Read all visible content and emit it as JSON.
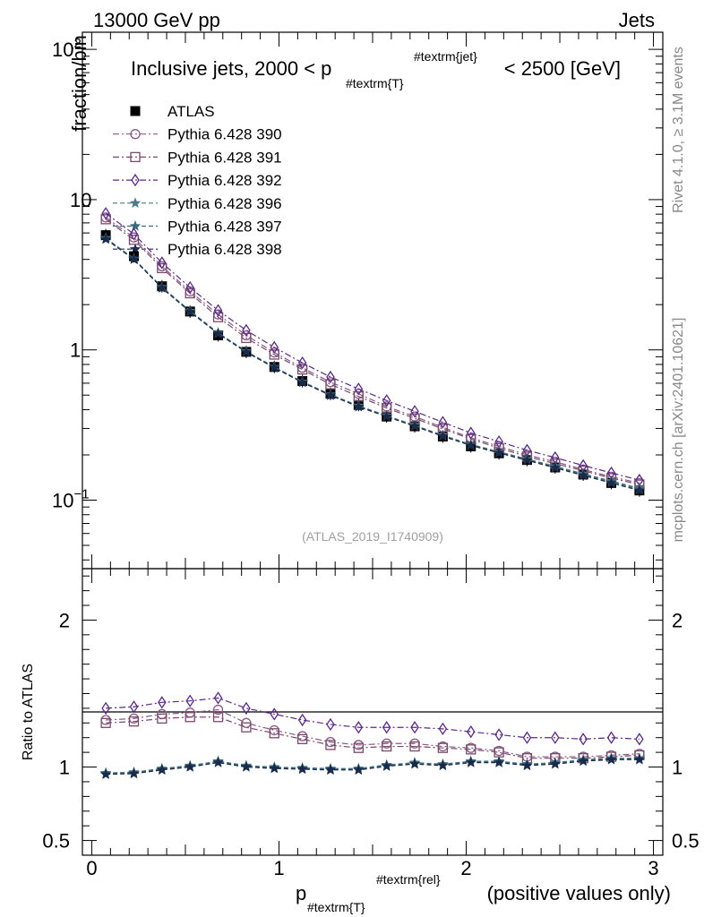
{
  "header": {
    "left": "13000 GeV pp",
    "right": "Jets"
  },
  "side_labels": {
    "rivet": "Rivet 4.1.0, ≥ 3.1M events",
    "mcplots": "mcplots.cern.ch [arXiv:2401.10621]"
  },
  "watermark": "(ATLAS_2019_I1740909)",
  "colors": {
    "atlas": "#000000",
    "s390": "#8a5a86",
    "s391": "#7a4a6a",
    "s392": "#5a2a8a",
    "s396": "#4a7a8a",
    "s397": "#3a6a7a",
    "s398": "#1a2a4a"
  },
  "chart_data": [
    {
      "type": "scatter",
      "title": "Inclusive jets, 2000 < p_#textrm{T}^#textrm{jet} < 2500 [GeV]",
      "title_parts": {
        "main": "Inclusive jets, 2000 < p",
        "sub": "#textrm{T}",
        "sup": "#textrm{jet}",
        "tail": "< 2500 [GeV]"
      },
      "ylabel": "fraction/bin",
      "yscale": "log",
      "ylim": [
        0.035,
        130
      ],
      "xlim": [
        -0.05,
        3.05
      ],
      "yticks": [
        {
          "value": 0.1,
          "base": "10",
          "exp": "−1"
        },
        {
          "value": 1,
          "base": "1",
          "exp": ""
        },
        {
          "value": 10,
          "base": "10",
          "exp": ""
        },
        {
          "value": 100,
          "base": "10",
          "exp": "2"
        }
      ],
      "x": [
        0.075,
        0.225,
        0.375,
        0.525,
        0.675,
        0.825,
        0.975,
        1.125,
        1.275,
        1.425,
        1.575,
        1.725,
        1.875,
        2.025,
        2.175,
        2.325,
        2.475,
        2.625,
        2.775,
        2.925
      ],
      "series": [
        {
          "name": "ATLAS",
          "key": "atlas",
          "marker": "square",
          "values": [
            5.8,
            4.2,
            2.65,
            1.8,
            1.25,
            0.97,
            0.77,
            0.62,
            0.51,
            0.43,
            0.36,
            0.31,
            0.265,
            0.228,
            0.205,
            0.185,
            0.165,
            0.148,
            0.13,
            0.116
          ]
        },
        {
          "name": "Pythia 6.428 390",
          "key": "s390",
          "marker": "circle",
          "values": [
            7.6,
            5.6,
            3.6,
            2.45,
            1.72,
            1.25,
            0.96,
            0.76,
            0.61,
            0.51,
            0.42,
            0.36,
            0.305,
            0.26,
            0.228,
            0.2,
            0.18,
            0.16,
            0.143,
            0.13
          ]
        },
        {
          "name": "Pythia 6.428 391",
          "key": "s391",
          "marker": "square-open",
          "values": [
            7.4,
            5.4,
            3.5,
            2.38,
            1.65,
            1.2,
            0.93,
            0.74,
            0.59,
            0.49,
            0.41,
            0.35,
            0.298,
            0.255,
            0.222,
            0.195,
            0.175,
            0.157,
            0.14,
            0.127
          ]
        },
        {
          "name": "Pythia 6.428 392",
          "key": "s392",
          "marker": "diamond-open",
          "values": [
            8.1,
            5.9,
            3.8,
            2.6,
            1.83,
            1.35,
            1.04,
            0.82,
            0.66,
            0.55,
            0.46,
            0.39,
            0.33,
            0.28,
            0.245,
            0.215,
            0.192,
            0.17,
            0.152,
            0.136
          ]
        },
        {
          "name": "Pythia 6.428 396",
          "key": "s396",
          "marker": "star",
          "values": [
            5.55,
            4.05,
            2.62,
            1.82,
            1.3,
            0.98,
            0.77,
            0.615,
            0.505,
            0.425,
            0.365,
            0.315,
            0.27,
            0.235,
            0.21,
            0.188,
            0.168,
            0.15,
            0.134,
            0.12
          ]
        },
        {
          "name": "Pythia 6.428 397",
          "key": "s397",
          "marker": "star",
          "values": [
            5.5,
            4.02,
            2.6,
            1.8,
            1.29,
            0.97,
            0.765,
            0.61,
            0.5,
            0.42,
            0.362,
            0.313,
            0.268,
            0.233,
            0.208,
            0.186,
            0.166,
            0.148,
            0.132,
            0.118
          ]
        },
        {
          "name": "Pythia 6.428 398",
          "key": "s398",
          "marker": "star",
          "values": [
            5.45,
            4.0,
            2.58,
            1.79,
            1.28,
            0.965,
            0.76,
            0.607,
            0.498,
            0.418,
            0.36,
            0.31,
            0.266,
            0.231,
            0.206,
            0.184,
            0.164,
            0.146,
            0.13,
            0.116
          ]
        }
      ]
    },
    {
      "type": "scatter",
      "ylabel": "Ratio to ATLAS",
      "xlabel": "p_#textrm{T}^#textrm{rel} (positive values only)",
      "xlabel_parts": {
        "main": "p",
        "sub": "#textrm{T}",
        "sup": "#textrm{rel}",
        "tail": "(positive values only)"
      },
      "ylim": [
        0.4,
        2.35
      ],
      "xlim": [
        -0.05,
        3.05
      ],
      "yticks": [
        0.5,
        1,
        2
      ],
      "ytick_labels": [
        "0.5",
        "1",
        "2"
      ],
      "xticks": [
        0,
        1,
        2,
        3
      ],
      "xtick_labels": [
        "0",
        "1",
        "2",
        "3"
      ],
      "x": [
        0.075,
        0.225,
        0.375,
        0.525,
        0.675,
        0.825,
        0.975,
        1.125,
        1.275,
        1.425,
        1.575,
        1.725,
        1.875,
        2.025,
        2.175,
        2.325,
        2.475,
        2.625,
        2.775,
        2.925
      ],
      "series": [
        {
          "name": "Pythia 6.428 390",
          "key": "s390",
          "marker": "circle",
          "values": [
            1.32,
            1.33,
            1.36,
            1.37,
            1.39,
            1.3,
            1.25,
            1.21,
            1.17,
            1.15,
            1.16,
            1.16,
            1.14,
            1.13,
            1.11,
            1.07,
            1.07,
            1.07,
            1.08,
            1.09
          ]
        },
        {
          "name": "Pythia 6.428 391",
          "key": "s391",
          "marker": "square-open",
          "values": [
            1.3,
            1.31,
            1.33,
            1.34,
            1.34,
            1.27,
            1.23,
            1.19,
            1.15,
            1.13,
            1.14,
            1.14,
            1.13,
            1.12,
            1.1,
            1.06,
            1.06,
            1.06,
            1.07,
            1.08
          ]
        },
        {
          "name": "Pythia 6.428 392",
          "key": "s392",
          "marker": "diamond-open",
          "values": [
            1.4,
            1.41,
            1.44,
            1.45,
            1.47,
            1.4,
            1.36,
            1.32,
            1.29,
            1.27,
            1.27,
            1.27,
            1.26,
            1.24,
            1.22,
            1.2,
            1.2,
            1.19,
            1.2,
            1.19
          ]
        },
        {
          "name": "Pythia 6.428 396",
          "key": "s396",
          "marker": "star",
          "values": [
            0.96,
            0.965,
            0.99,
            1.01,
            1.04,
            1.01,
            1.0,
            0.995,
            0.99,
            0.99,
            1.015,
            1.03,
            1.02,
            1.04,
            1.04,
            1.02,
            1.03,
            1.05,
            1.06,
            1.06
          ]
        },
        {
          "name": "Pythia 6.428 397",
          "key": "s397",
          "marker": "star",
          "values": [
            0.955,
            0.96,
            0.985,
            1.005,
            1.035,
            1.005,
            0.995,
            0.99,
            0.985,
            0.985,
            1.01,
            1.025,
            1.015,
            1.035,
            1.035,
            1.015,
            1.025,
            1.045,
            1.055,
            1.055
          ]
        },
        {
          "name": "Pythia 6.428 398",
          "key": "s398",
          "marker": "star",
          "values": [
            0.95,
            0.955,
            0.98,
            1.0,
            1.03,
            1.0,
            0.99,
            0.985,
            0.98,
            0.98,
            1.005,
            1.02,
            1.01,
            1.03,
            1.03,
            1.01,
            1.02,
            1.04,
            1.05,
            1.05
          ]
        }
      ]
    }
  ]
}
